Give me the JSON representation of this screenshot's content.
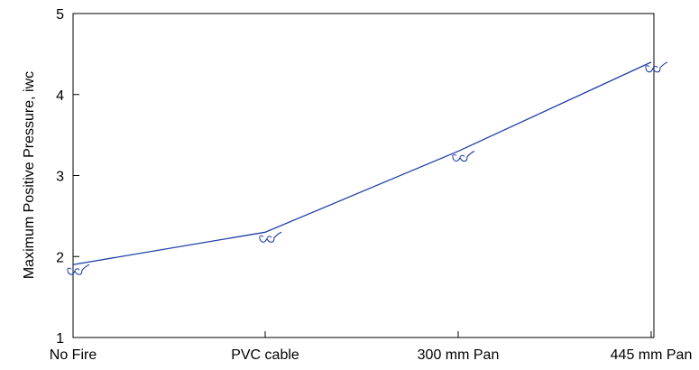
{
  "chart_data": {
    "type": "line",
    "title": "",
    "xlabel": "",
    "ylabel": "Maximum Positive Pressure, iwc",
    "categories": [
      "No Fire",
      "PVC cable",
      "300 mm Pan",
      "445 mm Pan"
    ],
    "series": [
      {
        "values": [
          1.9,
          2.3,
          3.3,
          4.4
        ],
        "color": "#1f3fa8",
        "marker": "spectacles-glyph"
      }
    ],
    "ylim": [
      1,
      5
    ],
    "yticks": [
      1,
      2,
      3,
      4,
      5
    ],
    "grid": false,
    "legend": "none"
  }
}
